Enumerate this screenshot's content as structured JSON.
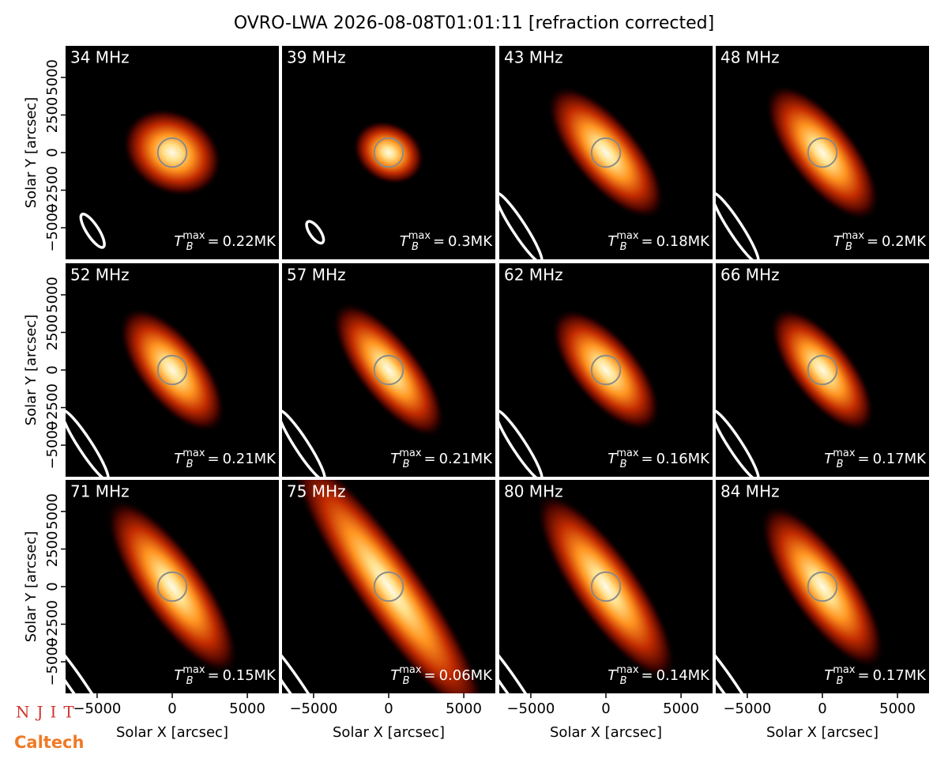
{
  "chart_data": {
    "type": "image-grid",
    "title": "OVRO-LWA 2026-08-08T01:01:11 [refraction corrected]",
    "xlabel": "Solar X [arcsec]",
    "ylabel": "Solar Y [arcsec]",
    "xlim": [
      -7100,
      7100
    ],
    "ylim": [
      -7100,
      7100
    ],
    "xticks": [
      {
        "value": -5000,
        "label": "−5000"
      },
      0,
      5000
    ],
    "yticks": [
      {
        "value": -5000,
        "label": "−5000"
      },
      {
        "value": -2500,
        "label": "−2500"
      },
      0,
      2500,
      5000
    ],
    "solar_radius": 960,
    "tb_label": {
      "base": "T",
      "sub": "B",
      "sup": "max",
      "eq": "="
    },
    "panels": [
      {
        "title": "34 MHz",
        "value": 0.22,
        "value_label": "0.22MK",
        "source": {
          "major": 7000,
          "minor": 5500,
          "angle": -30
        },
        "beam": {
          "x": -5300,
          "y": -5200,
          "major": 2600,
          "minor": 800,
          "angle": -57
        }
      },
      {
        "title": "39 MHz",
        "value": 0.3,
        "value_label": "0.3MK",
        "source": {
          "major": 5000,
          "minor": 4000,
          "angle": -30
        },
        "beam": {
          "x": -4900,
          "y": -5300,
          "major": 1700,
          "minor": 700,
          "angle": -55
        }
      },
      {
        "title": "43 MHz",
        "value": 0.18,
        "value_label": "0.18MK",
        "source": {
          "major": 11000,
          "minor": 4500,
          "angle": -50
        },
        "beam": {
          "x": -5800,
          "y": -5000,
          "major": 5500,
          "minor": 900,
          "angle": -57
        }
      },
      {
        "title": "48 MHz",
        "value": 0.2,
        "value_label": "0.2MK",
        "source": {
          "major": 11000,
          "minor": 4500,
          "angle": -52
        },
        "beam": {
          "x": -5800,
          "y": -5000,
          "major": 5500,
          "minor": 900,
          "angle": -57
        }
      },
      {
        "title": "52 MHz",
        "value": 0.21,
        "value_label": "0.21MK",
        "source": {
          "major": 10000,
          "minor": 4500,
          "angle": -52
        },
        "beam": {
          "x": -5800,
          "y": -5000,
          "major": 5500,
          "minor": 900,
          "angle": -57
        }
      },
      {
        "title": "57 MHz",
        "value": 0.21,
        "value_label": "0.21MK",
        "source": {
          "major": 11000,
          "minor": 4200,
          "angle": -52
        },
        "beam": {
          "x": -5800,
          "y": -5000,
          "major": 5500,
          "minor": 900,
          "angle": -57
        }
      },
      {
        "title": "62 MHz",
        "value": 0.16,
        "value_label": "0.16MK",
        "source": {
          "major": 10000,
          "minor": 4500,
          "angle": -50
        },
        "beam": {
          "x": -5800,
          "y": -5000,
          "major": 5500,
          "minor": 900,
          "angle": -57
        }
      },
      {
        "title": "66 MHz",
        "value": 0.17,
        "value_label": "0.17MK",
        "source": {
          "major": 10000,
          "minor": 4200,
          "angle": -52
        },
        "beam": {
          "x": -5800,
          "y": -5000,
          "major": 5500,
          "minor": 900,
          "angle": -57
        }
      },
      {
        "title": "71 MHz",
        "value": 0.15,
        "value_label": "0.15MK",
        "source": {
          "major": 14000,
          "minor": 4500,
          "angle": -55
        },
        "beam": {
          "x": -6500,
          "y": -6300,
          "major": 8000,
          "minor": 1000,
          "angle": -55
        }
      },
      {
        "title": "75 MHz",
        "value": 0.06,
        "value_label": "0.06MK",
        "source": {
          "major": 22000,
          "minor": 4500,
          "angle": -55
        },
        "beam": {
          "x": -6500,
          "y": -6300,
          "major": 8000,
          "minor": 1000,
          "angle": -55
        }
      },
      {
        "title": "80 MHz",
        "value": 0.14,
        "value_label": "0.14MK",
        "source": {
          "major": 15000,
          "minor": 4500,
          "angle": -55
        },
        "beam": {
          "x": -6500,
          "y": -6300,
          "major": 8000,
          "minor": 1000,
          "angle": -55
        }
      },
      {
        "title": "84 MHz",
        "value": 0.17,
        "value_label": "0.17MK",
        "source": {
          "major": 13000,
          "minor": 4500,
          "angle": -55
        },
        "beam": {
          "x": -6500,
          "y": -6300,
          "major": 8000,
          "minor": 1000,
          "angle": -55
        }
      }
    ]
  },
  "logos": [
    "NJIT",
    "Caltech"
  ]
}
